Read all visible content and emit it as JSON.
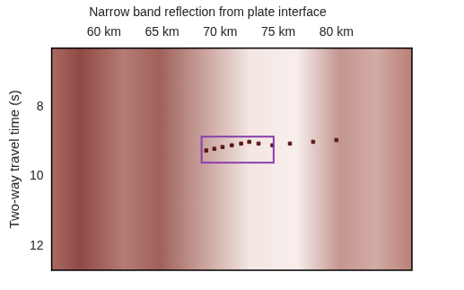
{
  "chart_data": {
    "type": "scatter",
    "title": "Narrow band reflection from plate interface",
    "y_label": "Two-way travel time (s)",
    "x": [
      68.8,
      69.5,
      70.2,
      71.0,
      71.8,
      72.5,
      73.3,
      74.5,
      76.0,
      78.0,
      80.0
    ],
    "values": [
      9.25,
      9.2,
      9.15,
      9.1,
      9.05,
      9.0,
      9.05,
      9.1,
      9.05,
      9.0,
      8.95
    ],
    "color": "#5a1a14",
    "marker": "rect",
    "xlim": [
      55.5,
      86.5
    ],
    "xticks": [
      {
        "value": 60,
        "label": "60 km"
      },
      {
        "value": 65,
        "label": "65 km"
      },
      {
        "value": 70,
        "label": "70 km"
      },
      {
        "value": 75,
        "label": "75 km"
      },
      {
        "value": 80,
        "label": "80 km"
      }
    ],
    "ylim": [
      6.3,
      12.7
    ],
    "yticks": [
      8,
      10,
      12
    ],
    "grid": false,
    "legend": false,
    "annotations": [
      {
        "type": "box",
        "x": [
          68.4,
          74.6
        ],
        "y": [
          8.85,
          9.6
        ],
        "color": "#8a3fb0"
      }
    ]
  }
}
